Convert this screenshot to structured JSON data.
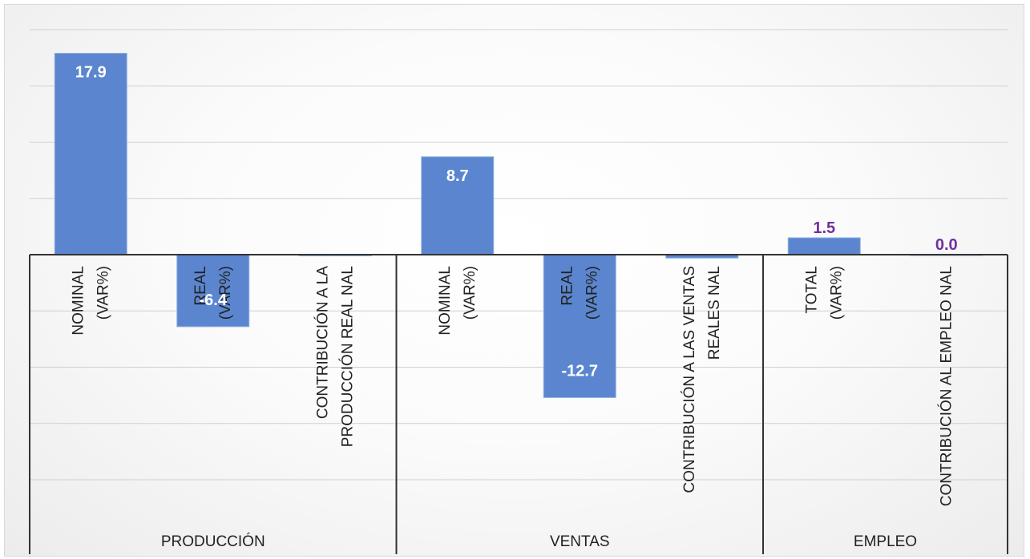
{
  "chart_data": {
    "type": "bar",
    "ylim": [
      -20,
      20
    ],
    "grid": true,
    "bar_color": "#5b86cf",
    "label_color_inside": "#ffffff",
    "label_color_outside": "#7030a0",
    "groups": [
      {
        "name": "PRODUCCIÓN",
        "categories": [
          {
            "lines": [
              "NOMINAL",
              "(VAR%)"
            ],
            "value": 17.9,
            "label": "17.9"
          },
          {
            "lines": [
              "REAL",
              "(VAR%)"
            ],
            "value": -6.4,
            "label": "-6.4"
          },
          {
            "lines": [
              "CONTRIBUCIÓN A LA",
              "PRODUCCIÓN REAL NAL"
            ],
            "value": -0.1,
            "label": ""
          }
        ]
      },
      {
        "name": "VENTAS",
        "categories": [
          {
            "lines": [
              "NOMINAL",
              "(VAR%)"
            ],
            "value": 8.7,
            "label": "8.7"
          },
          {
            "lines": [
              "REAL",
              "(VAR%)"
            ],
            "value": -12.7,
            "label": "-12.7"
          },
          {
            "lines": [
              "CONTRIBUCIÓN A LAS VENTAS",
              "REALES NAL"
            ],
            "value": -0.3,
            "label": ""
          }
        ]
      },
      {
        "name": "EMPLEO",
        "categories": [
          {
            "lines": [
              "TOTAL",
              "(VAR%)"
            ],
            "value": 1.5,
            "label": "1.5"
          },
          {
            "lines": [
              "CONTRIBUCIÓN AL EMPLEO NAL"
            ],
            "value": 0.0,
            "label": "0.0"
          }
        ]
      }
    ]
  }
}
